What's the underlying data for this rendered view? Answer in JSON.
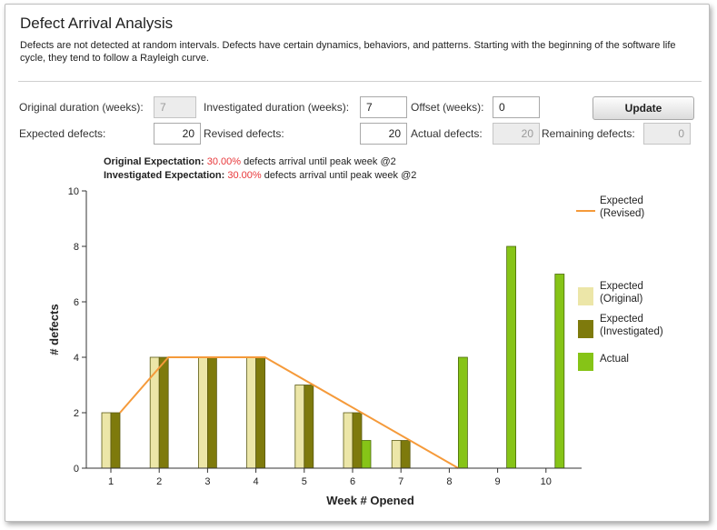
{
  "header": {
    "title": "Defect Arrival Analysis",
    "description": "Defects are not detected at random intervals. Defects have certain dynamics, behaviors, and patterns. Starting with the beginning of the software life cycle, they tend to follow a Rayleigh curve."
  },
  "form": {
    "original_duration_label": "Original duration (weeks):",
    "original_duration_value": "7",
    "investigated_duration_label": "Investigated duration (weeks):",
    "investigated_duration_value": "7",
    "offset_label": "Offset (weeks):",
    "offset_value": "0",
    "update_label": "Update",
    "expected_defects_label": "Expected defects:",
    "expected_defects_value": "20",
    "revised_defects_label": "Revised defects:",
    "revised_defects_value": "20",
    "actual_defects_label": "Actual defects:",
    "actual_defects_value": "20",
    "remaining_defects_label": "Remaining defects:",
    "remaining_defects_value": "0"
  },
  "expectations": {
    "original_label": "Original Expectation:",
    "original_pct": "30.00%",
    "original_suffix": " defects arrival until peak week @2",
    "investigated_label": "Investigated Expectation:",
    "investigated_pct": "30.00%",
    "investigated_suffix": " defects arrival until peak week @2"
  },
  "colors": {
    "original": "#ece6a8",
    "investigated": "#7e7a0c",
    "actual": "#86c417",
    "revised_line": "#f59a3a",
    "highlight_pct": "#e8373a"
  },
  "chart_data": {
    "type": "bar",
    "categories": [
      "1",
      "2",
      "3",
      "4",
      "5",
      "6",
      "7",
      "8",
      "9",
      "10"
    ],
    "xlabel": "Week # Opened",
    "ylabel": "# defects",
    "ylim": [
      0,
      10
    ],
    "yticks": [
      0,
      2,
      4,
      6,
      8,
      10
    ],
    "grid": false,
    "legend_position": "right",
    "series": [
      {
        "name": "Expected\n(Original)",
        "type": "bar",
        "values": [
          2,
          4,
          4,
          4,
          3,
          2,
          1,
          0,
          0,
          0
        ]
      },
      {
        "name": "Expected\n(Investigated)",
        "type": "bar",
        "values": [
          2,
          4,
          4,
          4,
          3,
          2,
          1,
          0,
          0,
          0
        ]
      },
      {
        "name": "Actual",
        "type": "bar",
        "values": [
          0,
          0,
          0,
          0,
          0,
          1,
          0,
          4,
          8,
          7
        ]
      },
      {
        "name": "Expected\n(Revised)",
        "type": "line",
        "x": [
          1,
          2,
          3,
          4,
          8
        ],
        "values": [
          2,
          4,
          4,
          4,
          0
        ]
      }
    ]
  }
}
